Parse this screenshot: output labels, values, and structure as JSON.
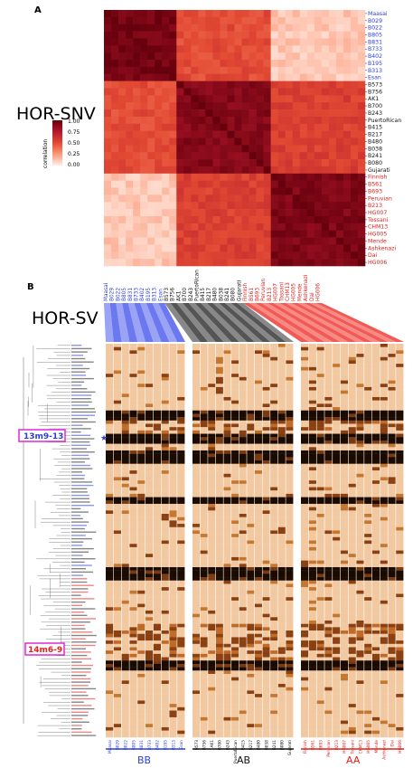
{
  "colors": {
    "blue": "#2b3fd6",
    "red": "#e0201c",
    "black": "#111111",
    "orange": "#f2c8a0",
    "heat_lo": "#ffe8dc",
    "heat_hi": "#67000d"
  },
  "panel_a": {
    "letter": "A",
    "title": "HOR-SNV",
    "samples": [
      "Maasai",
      "B029",
      "B022",
      "B805",
      "B831",
      "B733",
      "B402",
      "B195",
      "B313",
      "Esan",
      "B573",
      "B756",
      "AK1",
      "B700",
      "B243",
      "PuertoRican",
      "B415",
      "B217",
      "B480",
      "B038",
      "B241",
      "B080",
      "Gujarati",
      "Finnish",
      "B561",
      "B693",
      "Peruvian",
      "B213",
      "HG007",
      "Tossani",
      "CHM13",
      "HG005",
      "Mende",
      "Ashkenazi",
      "Dai",
      "HG006"
    ],
    "sample_groups": [
      "BB",
      "BB",
      "BB",
      "BB",
      "BB",
      "BB",
      "BB",
      "BB",
      "BB",
      "BB",
      "AB",
      "AB",
      "AB",
      "AB",
      "AB",
      "AB",
      "AB",
      "AB",
      "AB",
      "AB",
      "AB",
      "AB",
      "AB",
      "AA",
      "AA",
      "AA",
      "AA",
      "AA",
      "AA",
      "AA",
      "AA",
      "AA",
      "AA",
      "AA",
      "AA",
      "AA"
    ],
    "colorbar": {
      "label": "correlation",
      "ticks": [
        "1.00",
        "0.75",
        "0.50",
        "0.25",
        "0.00"
      ]
    }
  },
  "panel_b": {
    "letter": "B",
    "title": "HOR-SV",
    "samples_top": [
      "Maasai",
      "B029",
      "B022",
      "B805",
      "B831",
      "B733",
      "B402",
      "B195",
      "B313",
      "Esan",
      "B573",
      "B756",
      "AK1",
      "B700",
      "B243",
      "PuertoRican",
      "B415",
      "B217",
      "B480",
      "B038",
      "B241",
      "B080",
      "Gujarati",
      "Finnish",
      "B561",
      "B693",
      "Peruvian",
      "B213",
      "HG007",
      "Tossani",
      "CHM13",
      "HG005",
      "Mende",
      "Ashkenazi",
      "Dai",
      "HG006"
    ],
    "samples_bottom": [
      "Maasai",
      "B029",
      "B022",
      "B805",
      "B831",
      "B733",
      "B402",
      "B195",
      "B313",
      "Esan",
      "B573",
      "B756",
      "AK1",
      "B700",
      "B243",
      "PuertoRican",
      "B415",
      "B217",
      "B480",
      "B038",
      "B241",
      "B080",
      "Gujarati",
      "Finnish",
      "B561",
      "B693",
      "Peruvian",
      "B213",
      "HG007",
      "Tossani",
      "CHM13",
      "HG005",
      "Mende",
      "Ashkenazi",
      "Dai",
      "HG006"
    ],
    "highlight_1": "13m9-13",
    "highlight_2": "14m6-9",
    "groups": [
      {
        "name": "BB",
        "color": "#2b3fd6"
      },
      {
        "name": "AB",
        "color": "#111111"
      },
      {
        "name": "AA",
        "color": "#e0201c"
      }
    ]
  },
  "chart_data": [
    {
      "type": "heatmap",
      "title": "HOR-SNV",
      "rows": [
        "Maasai",
        "B029",
        "B022",
        "B805",
        "B831",
        "B733",
        "B402",
        "B195",
        "B313",
        "Esan",
        "B573",
        "B756",
        "AK1",
        "B700",
        "B243",
        "PuertoRican",
        "B415",
        "B217",
        "B480",
        "B038",
        "B241",
        "B080",
        "Gujarati",
        "Finnish",
        "B561",
        "B693",
        "Peruvian",
        "B213",
        "HG007",
        "Tossani",
        "CHM13",
        "HG005",
        "Mende",
        "Ashkenazi",
        "Dai",
        "HG006"
      ],
      "columns": "same as rows",
      "value_label": "correlation",
      "range": [
        0,
        1
      ],
      "block_correlation": {
        "BB-BB": 0.95,
        "AB-AB": 0.9,
        "AA-AA": 0.92,
        "BB-AB": 0.5,
        "AB-AA": 0.55,
        "BB-AA": 0.12
      }
    },
    {
      "type": "heatmap",
      "title": "HOR-SV",
      "columns_groups": {
        "BB": 10,
        "AB": 13,
        "AA": 13
      },
      "rows_approx": 118,
      "highlighted_rows": [
        "13m9-13",
        "14m6-9"
      ]
    }
  ]
}
